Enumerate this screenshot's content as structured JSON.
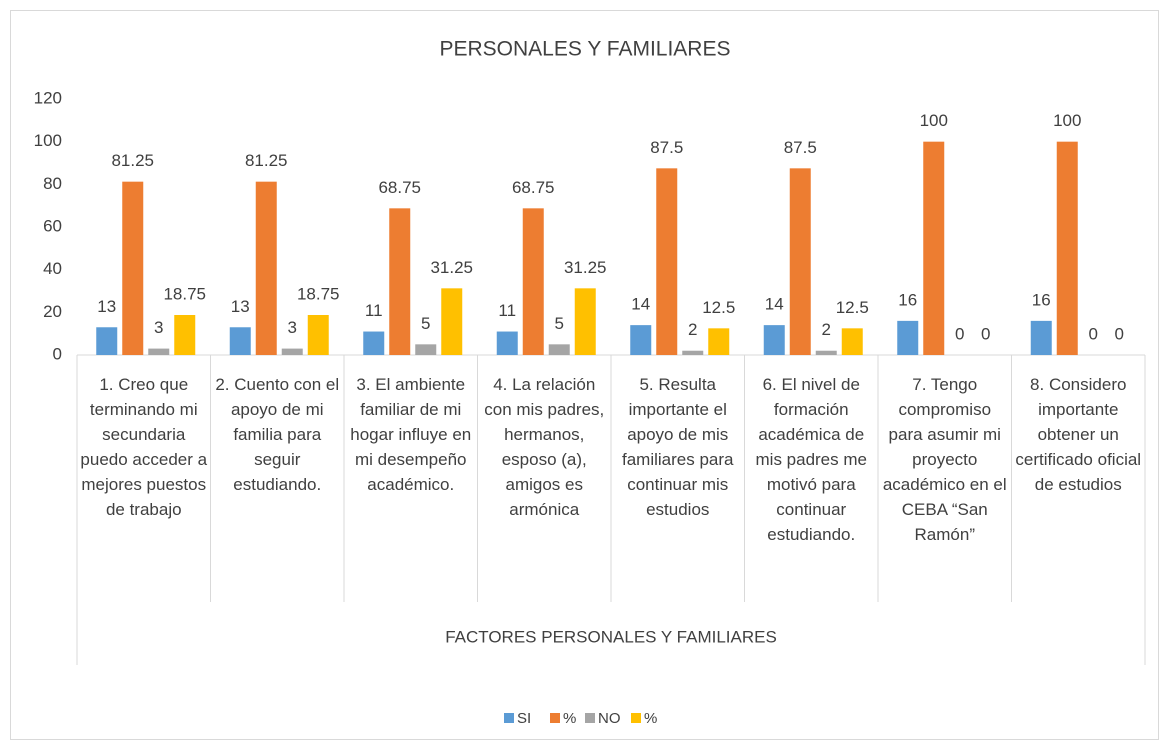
{
  "chart_data": {
    "type": "bar",
    "title": "PERSONALES Y FAMILIARES",
    "x_label": "FACTORES PERSONALES Y FAMILIARES",
    "categories": [
      "1. Creo que terminando mi secundaria puedo acceder a mejores puestos de trabajo",
      "2. Cuento con el apoyo de mi familia para seguir estudiando.",
      "3. El ambiente familiar de mi hogar influye en mi desempeño académico.",
      "4. La relación con mis padres, hermanos, esposo (a), amigos es armónica",
      "5. Resulta importante el apoyo de mis familiares para continuar mis estudios",
      "6. El nivel de formación académica de mis padres me motivó para continuar estudiando.",
      "7. Tengo compromiso para asumir mi proyecto académico en el CEBA “San Ramón”",
      "8. Considero importante obtener un certificado oficial de estudios"
    ],
    "series": [
      {
        "name": "SI",
        "color": "#5b9bd5",
        "values": [
          13,
          13,
          11,
          11,
          14,
          14,
          16,
          16
        ]
      },
      {
        "name": "%",
        "color": "#ed7d31",
        "values": [
          81.25,
          81.25,
          68.75,
          68.75,
          87.5,
          87.5,
          100,
          100
        ]
      },
      {
        "name": "NO",
        "color": "#a5a5a5",
        "values": [
          3,
          3,
          5,
          5,
          2,
          2,
          0,
          0
        ]
      },
      {
        "name": "%",
        "color": "#ffc000",
        "values": [
          18.75,
          18.75,
          31.25,
          31.25,
          12.5,
          12.5,
          0,
          0
        ]
      }
    ],
    "ylim": [
      0,
      120
    ],
    "yticks": [
      0,
      20,
      40,
      60,
      80,
      100,
      120
    ],
    "grid": false,
    "legend": "bottom"
  }
}
